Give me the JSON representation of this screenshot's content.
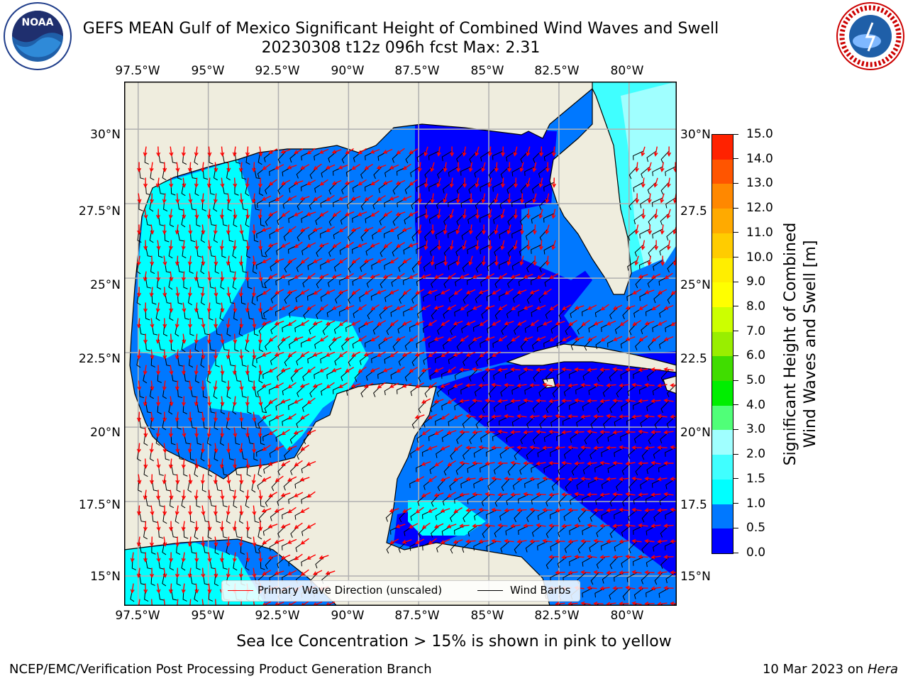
{
  "title": {
    "line1": "GEFS MEAN Gulf of Mexico Significant Height of Combined Wind Waves and Swell",
    "line2": "20230308 t12z 096h fcst   Max: 2.31"
  },
  "map": {
    "lon_ticks": [
      "97.5°W",
      "95°W",
      "92.5°W",
      "90°W",
      "87.5°W",
      "85°W",
      "82.5°W",
      "80°W"
    ],
    "lat_ticks_left": [
      "30°N",
      "27.5°N",
      "25°N",
      "22.5°N",
      "20°N",
      "17.5°N",
      "15°N"
    ],
    "lat_ticks_right": [
      "30°N",
      "27.5",
      "25°N",
      "22.5",
      "20°N",
      "17.5",
      "15°N"
    ],
    "extent": {
      "lon_min": -98.0,
      "lon_max": -78.3,
      "lat_min": 14.0,
      "lat_max": 31.6
    },
    "colors": {
      "land": "#efedde",
      "border": "#000000",
      "grid": "#b0b0b0",
      "arrow": "#ff0000",
      "barb": "#000000"
    }
  },
  "legend": {
    "primary_wave": "Primary Wave Direction (unscaled)",
    "wind_barbs": "Wind Barbs"
  },
  "colorbar": {
    "label_line1": "Significant Height of Combined",
    "label_line2": "Wind Waves and Swell [m]",
    "ticks": [
      "0.0",
      "0.5",
      "1.0",
      "1.5",
      "2.0",
      "3.0",
      "4.0",
      "5.0",
      "6.0",
      "7.0",
      "8.0",
      "9.0",
      "10.0",
      "11.0",
      "12.0",
      "13.0",
      "14.0",
      "15.0"
    ],
    "colors": [
      "#0000ff",
      "#0078ff",
      "#00ffff",
      "#40ffff",
      "#a0ffff",
      "#50ff78",
      "#00ee00",
      "#40dd00",
      "#99ee00",
      "#ccff00",
      "#ffff00",
      "#ffee00",
      "#ffcc00",
      "#ffaa00",
      "#ff8800",
      "#ff5500",
      "#ff2200"
    ]
  },
  "caption": "Sea Ice Concentration > 15% is shown in pink to yellow",
  "footer": {
    "left": "NCEP/EMC/Verification Post Processing Product Generation Branch",
    "right_date": "10 Mar 2023 on",
    "right_machine": "Hera"
  },
  "logos": {
    "noaa": "NOAA",
    "nws": "NATIONAL WEATHER SERVICE"
  }
}
